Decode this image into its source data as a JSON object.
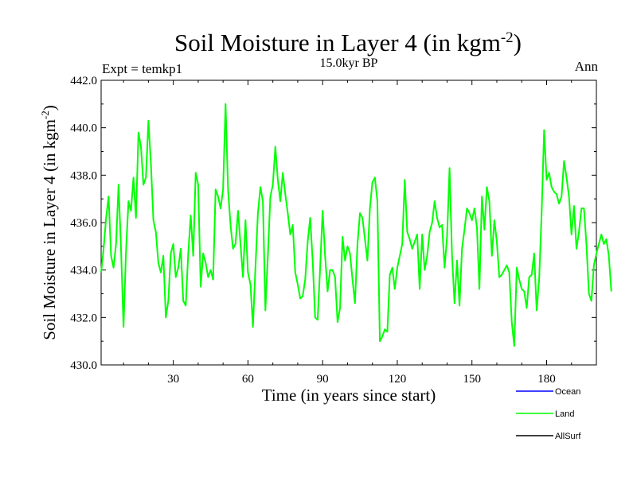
{
  "chart_data": {
    "type": "line",
    "title": "Soil Moisture in Layer 4 (in kgm",
    "title_sup": "-2",
    "title_close": ")",
    "subtitle_left": "Expt = temkp1",
    "subtitle_center": "15.0kyr BP",
    "subtitle_right": "Ann",
    "xlabel": "Time (in years since start)",
    "ylabel": "Soil Moisture in Layer 4 (in kgm",
    "ylabel_sup": "-2",
    "ylabel_close": ")",
    "xlim": [
      1,
      200
    ],
    "ylim": [
      430,
      442
    ],
    "x_ticks": [
      30,
      60,
      90,
      120,
      150,
      180
    ],
    "y_ticks": [
      "430.0",
      "432.0",
      "434.0",
      "436.0",
      "438.0",
      "440.0",
      "442.0"
    ],
    "legend": [
      {
        "name": "Ocean",
        "color": "#0000ff"
      },
      {
        "name": "Land",
        "color": "#00ff00"
      },
      {
        "name": "AllSurf",
        "color": "#000000"
      }
    ],
    "series": [
      {
        "name": "Land",
        "color": "#00ff00",
        "values": [
          433.9,
          434.9,
          436.2,
          437.1,
          434.6,
          434.1,
          435.1,
          437.6,
          434.9,
          431.6,
          434.8,
          436.9,
          436.5,
          437.9,
          436.2,
          439.8,
          439.2,
          437.6,
          437.9,
          440.3,
          438.5,
          436.1,
          435.6,
          434.3,
          433.9,
          434.6,
          432.0,
          432.7,
          434.7,
          435.1,
          433.7,
          434.1,
          434.9,
          432.7,
          432.5,
          434.7,
          436.3,
          434.6,
          438.1,
          437.6,
          433.3,
          434.7,
          434.3,
          433.7,
          434.0,
          433.6,
          437.4,
          437.1,
          436.6,
          437.4,
          441.0,
          437.4,
          435.9,
          434.9,
          435.1,
          436.5,
          435.1,
          433.7,
          436.1,
          433.9,
          433.4,
          431.6,
          434.1,
          436.4,
          437.5,
          436.9,
          432.3,
          434.6,
          437.1,
          437.6,
          439.2,
          437.8,
          436.9,
          438.1,
          437.2,
          436.4,
          435.5,
          435.9,
          433.9,
          433.4,
          432.8,
          432.9,
          433.6,
          435.2,
          436.2,
          434.4,
          432.0,
          431.9,
          434.1,
          436.5,
          434.6,
          433.1,
          434.0,
          434.0,
          433.7,
          431.8,
          432.4,
          435.4,
          434.4,
          435.0,
          434.7,
          433.6,
          432.6,
          435.1,
          436.4,
          436.2,
          435.3,
          434.4,
          436.6,
          437.7,
          437.9,
          436.9,
          431.0,
          431.2,
          431.5,
          431.4,
          433.8,
          434.1,
          433.2,
          434.1,
          434.6,
          435.1,
          437.8,
          435.6,
          435.3,
          434.9,
          435.2,
          435.5,
          433.2,
          435.5,
          434.0,
          434.6,
          435.6,
          436.0,
          436.9,
          436.2,
          435.8,
          435.9,
          434.1,
          435.4,
          438.3,
          434.6,
          432.6,
          434.4,
          432.5,
          434.9,
          435.7,
          436.6,
          436.4,
          436.1,
          436.6,
          435.8,
          433.2,
          437.1,
          435.7,
          437.5,
          436.9,
          434.6,
          436.1,
          435.2,
          433.7,
          433.8,
          434.0,
          434.2,
          433.9,
          431.8,
          430.8,
          434.1,
          433.6,
          433.2,
          433.1,
          432.4,
          433.7,
          433.8,
          434.7,
          432.3,
          433.6,
          436.4,
          439.9,
          437.8,
          438.1,
          437.5,
          437.3,
          437.2,
          436.8,
          437.1,
          438.6,
          437.9,
          437.1,
          435.5,
          436.7,
          434.9,
          435.6,
          436.6,
          436.6,
          435.1,
          433.0,
          432.7,
          434.2,
          434.7,
          435.1,
          435.5,
          435.1,
          435.3,
          434.6,
          433.1
        ]
      }
    ]
  }
}
